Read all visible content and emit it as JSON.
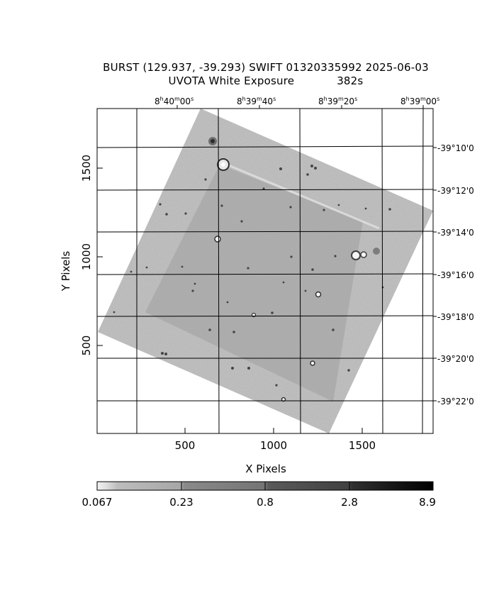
{
  "title": {
    "line1": "BURST (129.937, -39.293) SWIFT 01320335992 2025-06-03",
    "filter": "UVOTA White Exposure",
    "exposure": "382s"
  },
  "axes": {
    "xlabel": "X Pixels",
    "ylabel": "Y Pixels",
    "x_ticks": [
      "500",
      "1000",
      "1500"
    ],
    "y_ticks": [
      "500",
      "1000",
      "1500"
    ]
  },
  "ra_labels": [
    {
      "h": "8",
      "m": "40",
      "s": "00"
    },
    {
      "h": "8",
      "m": "39",
      "s": "40"
    },
    {
      "h": "8",
      "m": "39",
      "s": "20"
    },
    {
      "h": "8",
      "m": "39",
      "s": "00"
    }
  ],
  "dec_labels": [
    "-39°10'0",
    "-39°12'0",
    "-39°14'0",
    "-39°16'0",
    "-39°18'0",
    "-39°20'0",
    "-39°22'0"
  ],
  "colorbar": {
    "tick_labels": [
      "0.067",
      "0.23",
      "0.8",
      "2.8",
      "8.9"
    ]
  }
}
